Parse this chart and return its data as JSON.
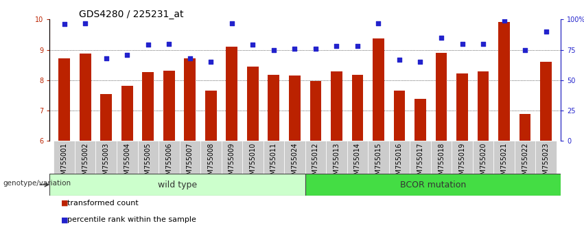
{
  "title": "GDS4280 / 225231_at",
  "samples": [
    "GSM755001",
    "GSM755002",
    "GSM755003",
    "GSM755004",
    "GSM755005",
    "GSM755006",
    "GSM755007",
    "GSM755008",
    "GSM755009",
    "GSM755010",
    "GSM755011",
    "GSM755024",
    "GSM755012",
    "GSM755013",
    "GSM755014",
    "GSM755015",
    "GSM755016",
    "GSM755017",
    "GSM755018",
    "GSM755019",
    "GSM755020",
    "GSM755021",
    "GSM755022",
    "GSM755023"
  ],
  "bar_values": [
    8.72,
    8.88,
    7.55,
    7.82,
    8.27,
    8.32,
    8.72,
    7.65,
    9.1,
    8.45,
    8.18,
    8.15,
    7.98,
    8.28,
    8.18,
    9.38,
    7.65,
    7.38,
    8.9,
    8.22,
    8.3,
    9.92,
    6.88,
    8.6
  ],
  "dot_values": [
    96,
    97,
    68,
    71,
    79,
    80,
    68,
    65,
    97,
    79,
    75,
    76,
    76,
    78,
    78,
    97,
    67,
    65,
    85,
    80,
    80,
    99,
    75,
    90
  ],
  "ylim_left": [
    6,
    10
  ],
  "ylim_right": [
    0,
    100
  ],
  "yticks_left": [
    6,
    7,
    8,
    9,
    10
  ],
  "yticks_right": [
    0,
    25,
    50,
    75,
    100
  ],
  "ytick_labels_right": [
    "0",
    "25",
    "50",
    "75",
    "100%"
  ],
  "bar_color": "#bb2200",
  "dot_color": "#2222cc",
  "grid_color": "#000000",
  "xticklabel_bg": "#cccccc",
  "wild_type_count": 12,
  "bcor_count": 12,
  "wild_type_color": "#ccffcc",
  "bcor_color": "#44dd44",
  "genotype_label": "genotype/variation",
  "wild_type_label": "wild type",
  "bcor_label": "BCOR mutation",
  "legend_bar_label": "transformed count",
  "legend_dot_label": "percentile rank within the sample",
  "title_fontsize": 10,
  "tick_fontsize": 7,
  "label_fontsize": 9
}
